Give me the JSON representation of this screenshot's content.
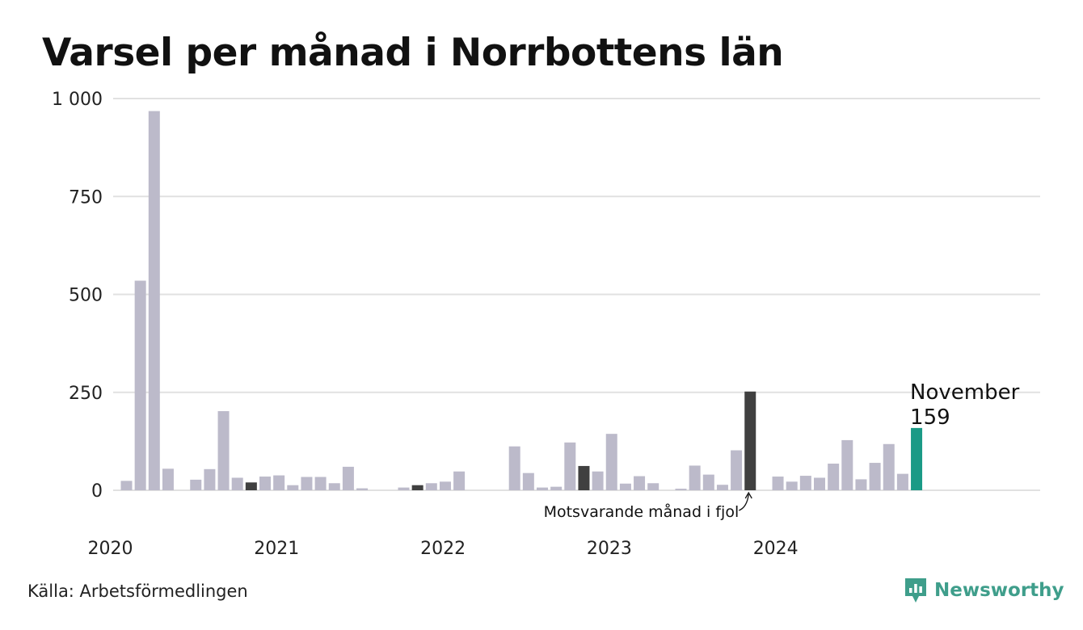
{
  "title": "Varsel per månad i Norrbottens län",
  "source": "Källa: Arbetsförmedlingen",
  "brand": {
    "name": "Newsworthy",
    "icon": "newsworthy-logo-icon",
    "color": "#3f9e8b"
  },
  "colors": {
    "default": "#bcbaca",
    "previous_year": "#404040",
    "current": "#1a9a86",
    "grid": "#e1e1e1"
  },
  "chart_data": {
    "type": "bar",
    "title": "Varsel per månad i Norrbottens län",
    "xlabel": "",
    "ylabel": "",
    "ylim": [
      0,
      1000
    ],
    "yticks": [
      0,
      250,
      500,
      750,
      1000
    ],
    "ytick_labels": [
      "0",
      "250",
      "500",
      "750",
      "1 000"
    ],
    "year_labels": [
      {
        "label": "2020",
        "index": 0
      },
      {
        "label": "2021",
        "index": 12
      },
      {
        "label": "2022",
        "index": 24
      },
      {
        "label": "2023",
        "index": 36
      },
      {
        "label": "2024",
        "index": 48
      }
    ],
    "series": [
      {
        "values": [
          24,
          535,
          968,
          55,
          0,
          27,
          54,
          202,
          32,
          20,
          35,
          38,
          13,
          34,
          34,
          18,
          60,
          5,
          0,
          0,
          7,
          13,
          18,
          22,
          48,
          0,
          0,
          0,
          112,
          44,
          7,
          9,
          122,
          62,
          48,
          144,
          17,
          36,
          18,
          0,
          4,
          63,
          40,
          14,
          102,
          252,
          0,
          35,
          22,
          37,
          32,
          68,
          128,
          28,
          70,
          118,
          42,
          159
        ]
      }
    ],
    "highlight_previous_year_indices": [
      9,
      21,
      33,
      45
    ],
    "highlight_current_index": 57,
    "annotations": [
      {
        "text": "Motsvarande månad i fjol",
        "index": 45
      },
      {
        "text": "November",
        "index": 57
      },
      {
        "text": "159",
        "index": 57
      }
    ]
  }
}
